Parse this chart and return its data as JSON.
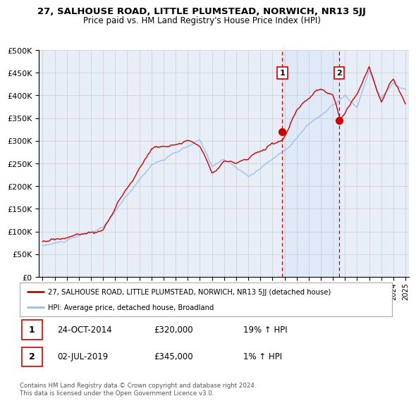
{
  "title": "27, SALHOUSE ROAD, LITTLE PLUMSTEAD, NORWICH, NR13 5JJ",
  "subtitle": "Price paid vs. HM Land Registry's House Price Index (HPI)",
  "background_color": "#ffffff",
  "plot_bg_color": "#e8eef8",
  "grid_color": "#cccccc",
  "red_line_color": "#cc0000",
  "blue_line_color": "#99bbee",
  "sale1_x": 2014.82,
  "sale1_y": 320000,
  "sale2_x": 2019.5,
  "sale2_y": 345000,
  "sale1_date": "24-OCT-2014",
  "sale1_price": "£320,000",
  "sale1_hpi": "19% ↑ HPI",
  "sale2_date": "02-JUL-2019",
  "sale2_price": "£345,000",
  "sale2_hpi": "1% ↑ HPI",
  "legend_line1": "27, SALHOUSE ROAD, LITTLE PLUMSTEAD, NORWICH, NR13 5JJ (detached house)",
  "legend_line2": "HPI: Average price, detached house, Broadland",
  "footnote": "Contains HM Land Registry data © Crown copyright and database right 2024.\nThis data is licensed under the Open Government Licence v3.0.",
  "ylim": [
    0,
    500000
  ],
  "xlim": [
    1994.7,
    2025.3
  ]
}
